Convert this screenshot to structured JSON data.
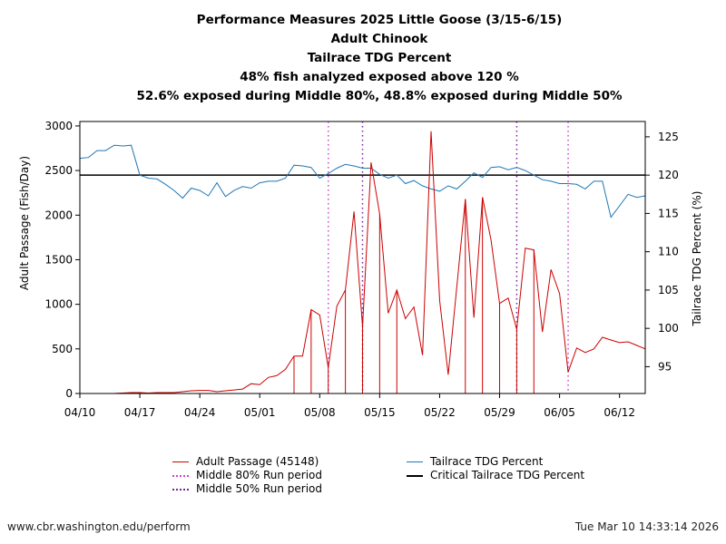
{
  "title_lines": [
    "Performance Measures 2025 Little Goose (3/15-6/15)",
    "Adult Chinook",
    "Tailrace TDG Percent",
    "48% fish analyzed exposed above 120 %",
    "52.6% exposed during Middle 80%, 48.8% exposed during Middle 50%"
  ],
  "footer": {
    "url": "www.cbr.washington.edu/perform",
    "timestamp": "Tue Mar 10 14:33:14 2026"
  },
  "legend": {
    "adult_passage": "Adult Passage (45148)",
    "middle80": "Middle 80% Run period",
    "middle50": "Middle 50% Run period",
    "tdg": "Tailrace TDG Percent",
    "critical": "Critical Tailrace TDG Percent"
  },
  "colors": {
    "passage": "#cc0000",
    "tdg": "#1f77b4",
    "critical": "#000000",
    "middle80": "#cc44cc",
    "middle50": "#7a1fa2"
  },
  "chart_data": {
    "type": "line",
    "xlabel": "",
    "ylabel_left": "Adult Passage (Fish/Day)",
    "ylabel_right": "Tailrace TDG Percent (%)",
    "x_ticks": [
      {
        "day": 0,
        "label": "04/10"
      },
      {
        "day": 7,
        "label": "04/17"
      },
      {
        "day": 14,
        "label": "04/24"
      },
      {
        "day": 21,
        "label": "05/01"
      },
      {
        "day": 28,
        "label": "05/08"
      },
      {
        "day": 35,
        "label": "05/15"
      },
      {
        "day": 42,
        "label": "05/22"
      },
      {
        "day": 49,
        "label": "05/29"
      },
      {
        "day": 56,
        "label": "06/05"
      },
      {
        "day": 63,
        "label": "06/12"
      }
    ],
    "xlim": [
      0,
      66
    ],
    "ylim_left": [
      0,
      3050
    ],
    "yticks_left": [
      0,
      500,
      1000,
      1500,
      2000,
      2500,
      3000
    ],
    "ylim_right": [
      91.5,
      127
    ],
    "yticks_right": [
      95,
      100,
      105,
      110,
      115,
      120,
      125
    ],
    "critical_tdg": 120,
    "middle80_days": [
      29,
      57
    ],
    "middle50_days": [
      33,
      51
    ],
    "adult_passage": {
      "name": "Adult Passage (45148)",
      "values": [
        0,
        0,
        0,
        0,
        0,
        5,
        10,
        10,
        5,
        10,
        10,
        10,
        20,
        30,
        35,
        35,
        20,
        30,
        40,
        50,
        110,
        100,
        180,
        200,
        270,
        420,
        420,
        940,
        880,
        290,
        980,
        1160,
        2040,
        750,
        2590,
        2010,
        900,
        1160,
        840,
        970,
        430,
        2940,
        1040,
        210,
        1190,
        2180,
        850,
        2200,
        1720,
        1010,
        1070,
        720,
        1630,
        1610,
        690,
        1390,
        1120,
        240,
        510,
        460,
        500,
        630,
        600,
        570,
        580,
        540,
        500
      ],
      "drop_days": [
        25,
        27,
        29,
        31,
        33,
        35,
        37,
        45,
        47,
        49,
        51,
        53
      ]
    },
    "tdg_series": {
      "name": "Tailrace TDG Percent",
      "values": [
        122.2,
        122.3,
        123.2,
        123.2,
        123.9,
        123.8,
        123.9,
        120,
        119.6,
        119.5,
        118.8,
        118,
        117,
        118.3,
        118,
        117.3,
        119,
        117.2,
        118,
        118.5,
        118.3,
        119,
        119.2,
        119.2,
        119.6,
        121.3,
        121.2,
        121,
        119.6,
        120.2,
        120.9,
        121.4,
        121.2,
        120.9,
        120.9,
        120.1,
        119.6,
        120,
        118.9,
        119.3,
        118.6,
        118.2,
        117.9,
        118.6,
        118.2,
        119.2,
        120.3,
        119.7,
        121,
        121.1,
        120.7,
        121,
        120.6,
        120,
        119.4,
        119.2,
        118.9,
        118.9,
        118.8,
        118.2,
        119.2,
        119.2,
        114.5,
        116,
        117.5,
        117.1,
        117.3
      ]
    }
  }
}
